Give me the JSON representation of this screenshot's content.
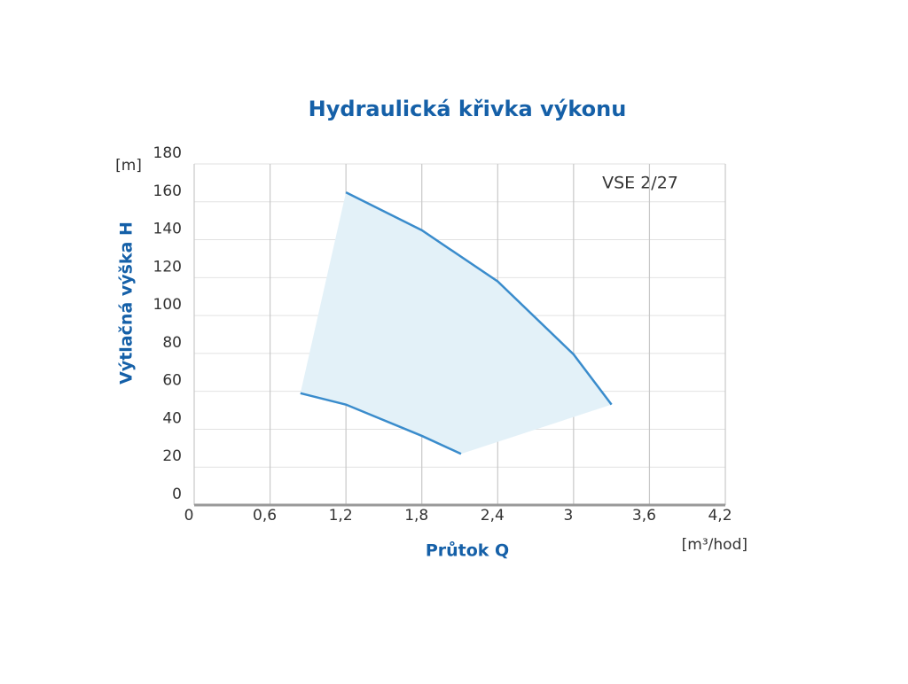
{
  "chart_data": {
    "type": "line",
    "title": "Hydraulická křivka výkonu",
    "x_label": "Průtok Q",
    "y_label": "Výtlačná výška H",
    "x_unit": "[m³/hod]",
    "y_unit": "[m]",
    "annotation": "VSE 2/27",
    "xlim": [
      0,
      4.2
    ],
    "xticks": [
      0,
      {
        "value": 0.6,
        "label": "0,6"
      },
      {
        "value": 1.2,
        "label": "1,2"
      },
      {
        "value": 1.8,
        "label": "1,8"
      },
      {
        "value": 2.4,
        "label": "2,4"
      },
      3,
      {
        "value": 3.6,
        "label": "3,6"
      },
      {
        "value": 4.2,
        "label": "4,2"
      }
    ],
    "ylim": [
      0,
      180
    ],
    "yticks": [
      0,
      20,
      40,
      60,
      80,
      100,
      120,
      140,
      160,
      180
    ],
    "grid": true,
    "fill_color": "#e3f1f8",
    "series": [
      {
        "color": "#3a8ccc",
        "x": [
          1.2,
          1.8,
          2.4,
          3.0,
          3.3
        ],
        "values": [
          165,
          145,
          118,
          79.5,
          53
        ]
      },
      {
        "color": "#3a8ccc",
        "x": [
          0.84,
          1.2,
          1.8,
          2.11
        ],
        "values": [
          59,
          53,
          36.5,
          27
        ]
      }
    ]
  }
}
